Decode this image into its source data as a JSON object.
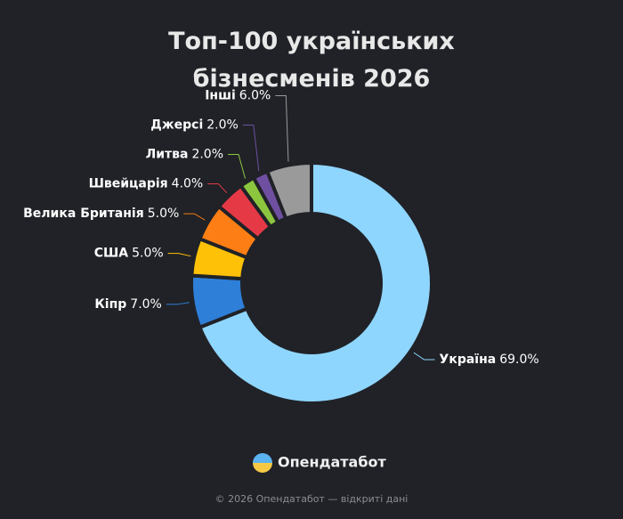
{
  "chart_data": {
    "type": "donut",
    "title": "Топ-100 українських бізнесменів 2026",
    "categories": [
      "Україна",
      "Кіпр",
      "США",
      "Велика Британія",
      "Швейцарія",
      "Литва",
      "Джерсі",
      "Інші"
    ],
    "values": [
      69,
      7,
      5,
      5,
      4,
      2,
      2,
      6
    ],
    "value_labels": [
      "69.0%",
      "7.0%",
      "5.0%",
      "5.0%",
      "4.0%",
      "2.0%",
      "2.0%",
      "6.0%"
    ],
    "colors": [
      "#8fd6ff",
      "#2e7fd8",
      "#ffc107",
      "#fd7e14",
      "#e63946",
      "#8cc63f",
      "#6f4fa0",
      "#9a9a9a"
    ]
  },
  "brand": "Опендатабот",
  "footer": "© 2026 Опендатабот — відкриті дані"
}
